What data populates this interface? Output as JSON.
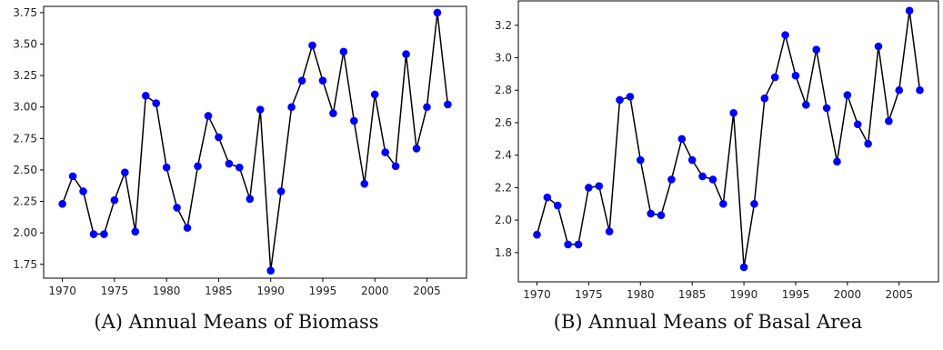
{
  "chart_data": [
    {
      "type": "line",
      "caption": "(A) Annual Means of Biomass",
      "title": "",
      "xlabel": "",
      "ylabel": "",
      "xlim": [
        1968.2,
        2008.8
      ],
      "ylim": [
        1.64,
        3.8
      ],
      "xticks": [
        1970,
        1975,
        1980,
        1985,
        1990,
        1995,
        2000,
        2005
      ],
      "yticks": [
        1.75,
        2.0,
        2.25,
        2.5,
        2.75,
        3.0,
        3.25,
        3.5,
        3.75
      ],
      "ytick_labels": [
        "1.75",
        "2.00",
        "2.25",
        "2.50",
        "2.75",
        "3.00",
        "3.25",
        "3.50",
        "3.75"
      ],
      "grid": false,
      "colors": {
        "line": "#000000",
        "marker": "#0000ff"
      },
      "series": [
        {
          "x": [
            1970,
            1971,
            1972,
            1973,
            1974,
            1975,
            1976,
            1977,
            1978,
            1979,
            1980,
            1981,
            1982,
            1983,
            1984,
            1985,
            1986,
            1987,
            1988,
            1989,
            1990,
            1991,
            1992,
            1993,
            1994,
            1995,
            1996,
            1997,
            1998,
            1999,
            2000,
            2001,
            2002,
            2003,
            2004,
            2005,
            2006,
            2007
          ],
          "values": [
            2.23,
            2.45,
            2.33,
            1.99,
            1.99,
            2.26,
            2.48,
            2.01,
            3.09,
            3.03,
            2.52,
            2.2,
            2.04,
            2.53,
            2.93,
            2.76,
            2.55,
            2.52,
            2.27,
            2.98,
            1.7,
            2.33,
            3.0,
            3.21,
            3.49,
            3.21,
            2.95,
            3.44,
            2.89,
            2.39,
            3.1,
            2.64,
            2.53,
            3.42,
            2.67,
            3.0,
            3.75,
            3.02
          ]
        }
      ]
    },
    {
      "type": "line",
      "caption": "(B) Annual Means of Basal Area",
      "title": "",
      "xlabel": "",
      "ylabel": "",
      "xlim": [
        1968.2,
        2008.8
      ],
      "ylim": [
        1.62,
        3.35
      ],
      "xticks": [
        1970,
        1975,
        1980,
        1985,
        1990,
        1995,
        2000,
        2005
      ],
      "yticks": [
        1.8,
        2.0,
        2.2,
        2.4,
        2.6,
        2.8,
        3.0,
        3.2
      ],
      "ytick_labels": [
        "1.8",
        "2.0",
        "2.2",
        "2.4",
        "2.6",
        "2.8",
        "3.0",
        "3.2"
      ],
      "grid": false,
      "colors": {
        "line": "#000000",
        "marker": "#0000ff"
      },
      "series": [
        {
          "x": [
            1970,
            1971,
            1972,
            1973,
            1974,
            1975,
            1976,
            1977,
            1978,
            1979,
            1980,
            1981,
            1982,
            1983,
            1984,
            1985,
            1986,
            1987,
            1988,
            1989,
            1990,
            1991,
            1992,
            1993,
            1994,
            1995,
            1996,
            1997,
            1998,
            1999,
            2000,
            2001,
            2002,
            2003,
            2004,
            2005,
            2006,
            2007
          ],
          "values": [
            1.91,
            2.14,
            2.09,
            1.85,
            1.85,
            2.2,
            2.21,
            1.93,
            2.74,
            2.76,
            2.37,
            2.04,
            2.03,
            2.25,
            2.5,
            2.37,
            2.27,
            2.25,
            2.1,
            2.66,
            1.71,
            2.1,
            2.75,
            2.88,
            3.14,
            2.89,
            2.71,
            3.05,
            2.69,
            2.36,
            2.77,
            2.59,
            2.47,
            3.07,
            2.61,
            2.8,
            3.29,
            2.8
          ]
        }
      ]
    }
  ]
}
